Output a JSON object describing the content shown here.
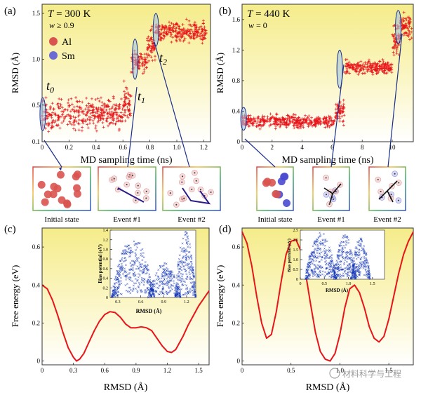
{
  "panels": {
    "a": {
      "tag": "(a)",
      "temp_sym": "T",
      "temp_val": " = 300 K",
      "w_sym": "w",
      "w_val": " ≥ 0.9",
      "legend": [
        {
          "label": "Al",
          "color": "#d9534f"
        },
        {
          "label": "Sm",
          "color": "#6b6bd6"
        }
      ],
      "times": [
        {
          "sym": "t",
          "sub": "0"
        },
        {
          "sym": "t",
          "sub": "1"
        },
        {
          "sym": "t",
          "sub": "2"
        }
      ],
      "insets": [
        "Initial state",
        "Event #1",
        "Event #2"
      ]
    },
    "b": {
      "tag": "(b)",
      "temp_sym": "T",
      "temp_val": " = 440 K",
      "w_sym": "w",
      "w_val": " = 0",
      "insets": [
        "Initial state",
        "Event #1",
        "Event #2"
      ]
    },
    "c": {
      "tag": "(c)"
    },
    "d": {
      "tag": "(d)"
    }
  },
  "watermark": "材料科学与工程",
  "chart_data": [
    {
      "id": "a",
      "type": "scatter",
      "title": "T = 300 K, w ≥ 0.9",
      "xlabel": "MD sampling time (ns)",
      "ylabel": "RMSD (Å)",
      "xlim": [
        0,
        1.25
      ],
      "ylim": [
        0.1,
        1.6
      ],
      "xticks": [
        0,
        0.2,
        0.4,
        0.6,
        0.8,
        1.0,
        1.2
      ],
      "xtick_labels": [
        "0",
        "0.2",
        "0.4",
        "0.6",
        "0.8",
        "1.0",
        "1.2"
      ],
      "yticks": [
        0.1,
        0.5,
        1.0,
        1.5
      ],
      "ytick_labels": [
        "0.1",
        "0.5",
        "1.0",
        "1.5"
      ],
      "marker": "+",
      "color": "#e8141a",
      "segments": [
        {
          "x0": 0.0,
          "x1": 0.6,
          "ymin": 0.18,
          "ymax": 0.62
        },
        {
          "x0": 0.6,
          "x1": 0.66,
          "ymin": 0.22,
          "ymax": 0.8
        },
        {
          "x0": 0.66,
          "x1": 0.78,
          "ymin": 0.8,
          "ymax": 1.12
        },
        {
          "x0": 0.78,
          "x1": 0.84,
          "ymin": 0.9,
          "ymax": 1.42
        },
        {
          "x0": 0.84,
          "x1": 1.22,
          "ymin": 1.15,
          "ymax": 1.45
        }
      ],
      "markers": [
        {
          "label": "t0",
          "x": 0.005,
          "y": 0.4,
          "rx": 0.015,
          "ry": 0.18
        },
        {
          "label": "t1",
          "x": 0.69,
          "y": 1.0,
          "rx": 0.012,
          "ry": 0.22
        },
        {
          "label": "t2",
          "x": 0.845,
          "y": 1.32,
          "rx": 0.012,
          "ry": 0.18
        }
      ]
    },
    {
      "id": "b",
      "type": "scatter",
      "title": "T = 440 K, w = 0",
      "xlabel": "MD sampling time (ns)",
      "ylabel": "RMSD (Å)",
      "xlim": [
        0,
        11.4
      ],
      "ylim": [
        0,
        1.8
      ],
      "xticks": [
        0,
        2,
        4,
        6,
        8,
        10
      ],
      "xtick_labels": [
        "0",
        "2",
        "4",
        "6",
        "8",
        "10"
      ],
      "yticks": [
        0,
        0.4,
        0.8,
        1.2,
        1.6
      ],
      "ytick_labels": [
        "0",
        "0.4",
        "0.8",
        "1.2",
        "1.6"
      ],
      "marker": "+",
      "color": "#e8141a",
      "segments": [
        {
          "x0": 0.0,
          "x1": 6.2,
          "ymin": 0.15,
          "ymax": 0.38
        },
        {
          "x0": 6.2,
          "x1": 6.8,
          "ymin": 0.2,
          "ymax": 0.6
        },
        {
          "x0": 6.8,
          "x1": 10.0,
          "ymin": 0.85,
          "ymax": 1.1
        },
        {
          "x0": 10.0,
          "x1": 10.5,
          "ymin": 1.0,
          "ymax": 1.65
        },
        {
          "x0": 10.5,
          "x1": 11.3,
          "ymin": 1.3,
          "ymax": 1.75
        }
      ],
      "markers": [
        {
          "label": "",
          "x": 0.1,
          "y": 0.3,
          "rx": 0.15,
          "ry": 0.15
        },
        {
          "label": "",
          "x": 6.5,
          "y": 0.95,
          "rx": 0.15,
          "ry": 0.25
        },
        {
          "label": "",
          "x": 10.4,
          "y": 1.5,
          "rx": 0.15,
          "ry": 0.22
        }
      ]
    },
    {
      "id": "c",
      "type": "line",
      "xlabel": "RMSD (Å)",
      "ylabel": "Free energy (eV)",
      "xlim": [
        0,
        1.6
      ],
      "ylim": [
        -0.02,
        0.7
      ],
      "xticks": [
        0,
        0.3,
        0.6,
        0.9,
        1.2,
        1.5
      ],
      "xtick_labels": [
        "0",
        "0.3",
        "0.6",
        "0.9",
        "1.2",
        "1.5"
      ],
      "yticks": [
        0,
        0.2,
        0.4,
        0.6
      ],
      "ytick_labels": [
        "0",
        "0.2",
        "0.4",
        "0.6"
      ],
      "color": "#e8141a",
      "x": [
        0,
        0.05,
        0.1,
        0.15,
        0.2,
        0.25,
        0.3,
        0.33,
        0.36,
        0.4,
        0.45,
        0.5,
        0.55,
        0.6,
        0.65,
        0.7,
        0.75,
        0.8,
        0.85,
        0.9,
        0.95,
        1.0,
        1.05,
        1.1,
        1.15,
        1.2,
        1.24,
        1.28,
        1.3,
        1.35,
        1.4,
        1.45,
        1.5,
        1.55,
        1.6
      ],
      "y": [
        0.4,
        0.38,
        0.32,
        0.24,
        0.15,
        0.07,
        0.02,
        0.0,
        0.01,
        0.04,
        0.1,
        0.16,
        0.21,
        0.245,
        0.26,
        0.255,
        0.23,
        0.195,
        0.175,
        0.175,
        0.18,
        0.175,
        0.16,
        0.12,
        0.08,
        0.05,
        0.045,
        0.06,
        0.08,
        0.13,
        0.19,
        0.24,
        0.29,
        0.33,
        0.37
      ],
      "inset": {
        "type": "scatter",
        "xlabel": "RMSD (Å)",
        "ylabel": "Bias potential (eV)",
        "xlim": [
          0.2,
          1.32
        ],
        "ylim": [
          0,
          1.4
        ],
        "xticks": [
          0.3,
          0.6,
          0.9,
          1.2
        ],
        "xtick_labels": [
          "0.3",
          "0.6",
          "0.9",
          "1.2"
        ],
        "yticks": [
          0,
          0.2,
          0.4,
          0.6,
          0.8,
          1.0,
          1.2,
          1.4
        ],
        "ytick_labels": [
          "0",
          "0.2",
          "0.4",
          "0.6",
          "0.8",
          "1.0",
          "1.2",
          "1.4"
        ],
        "color": "#1436b4"
      }
    },
    {
      "id": "d",
      "type": "line",
      "xlabel": "RMSD (Å)",
      "ylabel": "Free energy (eV)",
      "xlim": [
        0,
        1.75
      ],
      "ylim": [
        -0.02,
        0.7
      ],
      "xticks": [
        0,
        0.5,
        1.0,
        1.5
      ],
      "xtick_labels": [
        "0",
        "0.5",
        "1.0",
        "1.5"
      ],
      "yticks": [
        0,
        0.2,
        0.4,
        0.6
      ],
      "ytick_labels": [
        "0",
        "0.2",
        "0.4",
        "0.6"
      ],
      "color": "#e8141a",
      "x": [
        0,
        0.05,
        0.1,
        0.15,
        0.2,
        0.25,
        0.3,
        0.35,
        0.4,
        0.45,
        0.5,
        0.55,
        0.6,
        0.65,
        0.7,
        0.75,
        0.8,
        0.85,
        0.9,
        0.95,
        1.0,
        1.05,
        1.1,
        1.15,
        1.2,
        1.25,
        1.3,
        1.35,
        1.4,
        1.45,
        1.5,
        1.55,
        1.6,
        1.65,
        1.7,
        1.75
      ],
      "y": [
        0.68,
        0.62,
        0.5,
        0.34,
        0.2,
        0.12,
        0.14,
        0.26,
        0.42,
        0.56,
        0.63,
        0.64,
        0.58,
        0.46,
        0.3,
        0.15,
        0.05,
        0.01,
        0.0,
        0.04,
        0.14,
        0.28,
        0.38,
        0.4,
        0.36,
        0.28,
        0.18,
        0.12,
        0.1,
        0.13,
        0.22,
        0.34,
        0.46,
        0.56,
        0.63,
        0.68
      ],
      "inset": {
        "type": "scatter",
        "xlabel": "RMSD (Å)",
        "ylabel": "Bias potential (eV)",
        "xlim": [
          0,
          1.75
        ],
        "ylim": [
          0,
          2.5
        ],
        "xticks": [
          0,
          0.5,
          1.0,
          1.5
        ],
        "xtick_labels": [
          "0",
          "0.5",
          "1.0",
          "1.5"
        ],
        "yticks": [
          0,
          0.5,
          1.0,
          1.5,
          2.0,
          2.5
        ],
        "ytick_labels": [
          "0",
          "0.5",
          "1.0",
          "1.5",
          "2.0",
          "2.5"
        ],
        "color": "#1436b4"
      }
    }
  ]
}
